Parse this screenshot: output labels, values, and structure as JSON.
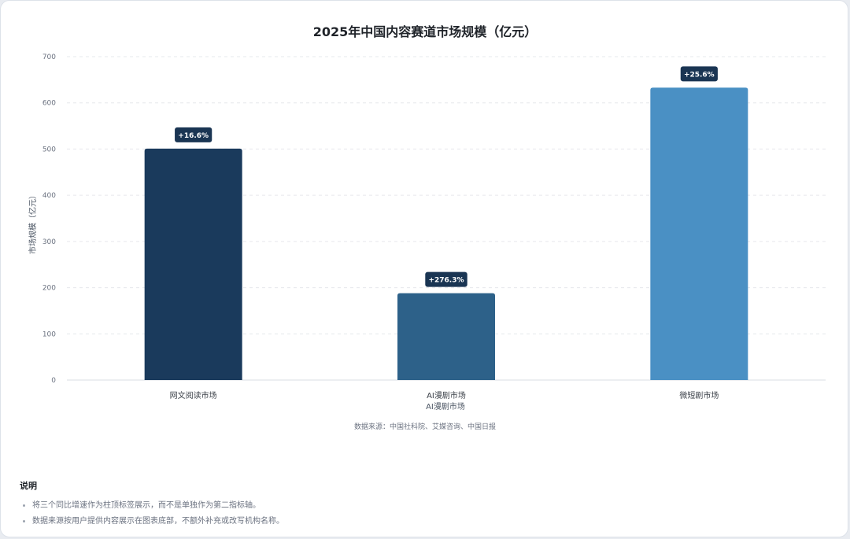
{
  "chart_data": {
    "type": "bar",
    "title": "2025年中国内容赛道市场规模（亿元）",
    "xlabel": "AI漫剧市场",
    "ylabel": "市场规模（亿元）",
    "categories": [
      "网文阅读市场",
      "AI漫剧市场",
      "微短剧市场"
    ],
    "values": [
      501,
      188,
      633
    ],
    "growth_labels": [
      "+16.6%",
      "+276.3%",
      "+25.6%"
    ],
    "bar_colors": [
      "#1a3a5c",
      "#2d6189",
      "#4a90c4"
    ],
    "badge_color": "#1a3553",
    "ylim": [
      0,
      700
    ],
    "yticks": [
      0,
      100,
      200,
      300,
      400,
      500,
      600,
      700
    ],
    "grid": true,
    "source": "数据来源：中国社科院、艾媒咨询、中国日报"
  },
  "notes": {
    "title": "说明",
    "items": [
      "将三个同比增速作为柱顶标签展示，而不是单独作为第二指标轴。",
      "数据来源按用户提供内容展示在图表底部，不额外补充或改写机构名称。"
    ]
  }
}
